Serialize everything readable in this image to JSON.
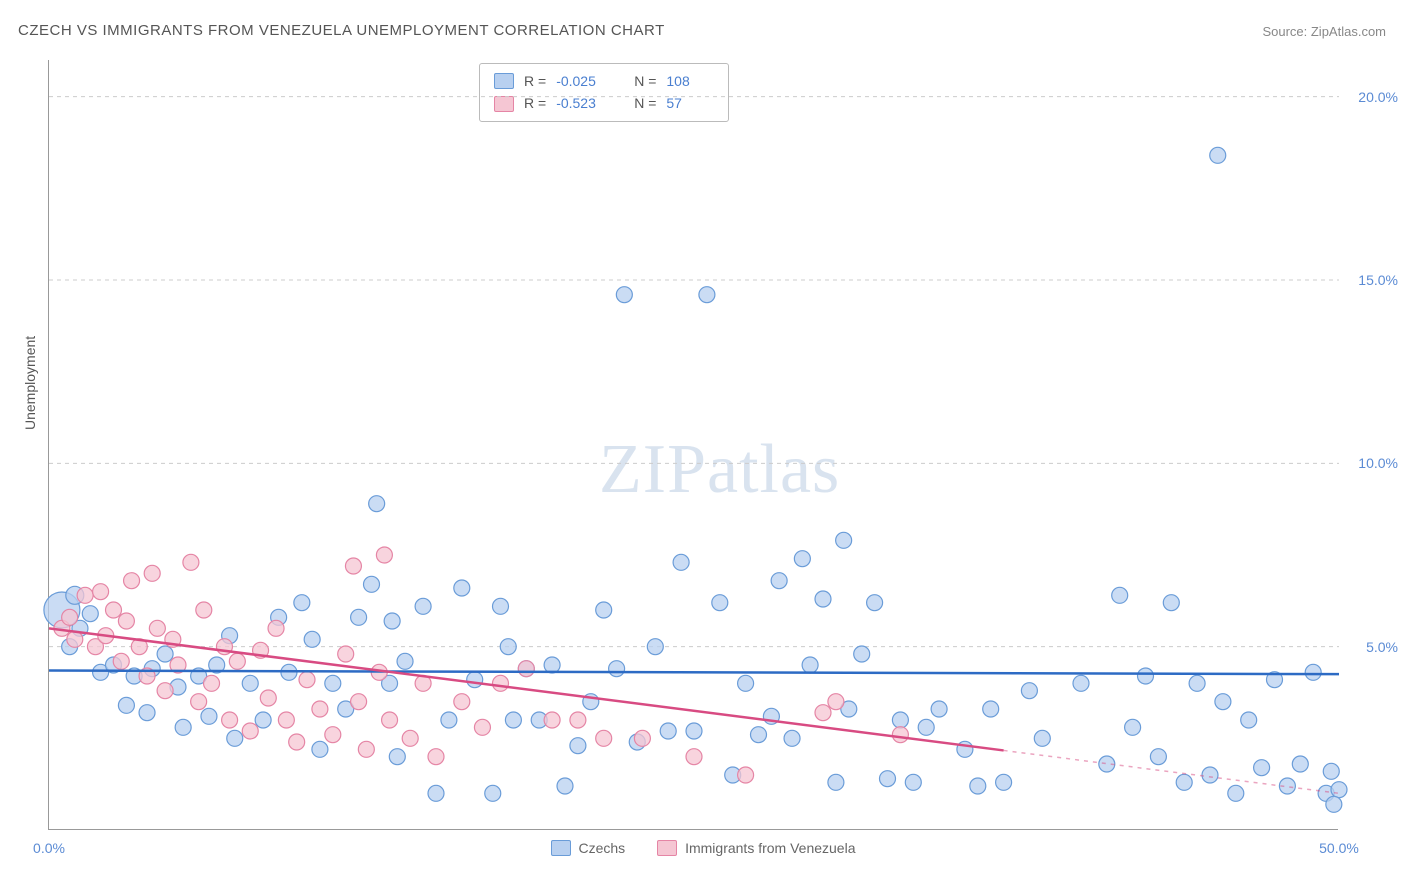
{
  "title": "CZECH VS IMMIGRANTS FROM VENEZUELA UNEMPLOYMENT CORRELATION CHART",
  "source": "Source: ZipAtlas.com",
  "watermark_zip": "ZIP",
  "watermark_atlas": "atlas",
  "y_axis_label": "Unemployment",
  "chart": {
    "type": "scatter",
    "background_color": "#ffffff",
    "grid_color": "#cccccc",
    "axis_color": "#999999",
    "xlim": [
      0,
      50
    ],
    "ylim": [
      0,
      21
    ],
    "x_ticks": [
      {
        "v": 0,
        "l": "0.0%"
      },
      {
        "v": 50,
        "l": "50.0%"
      }
    ],
    "y_ticks": [
      {
        "v": 5,
        "l": "5.0%"
      },
      {
        "v": 10,
        "l": "10.0%"
      },
      {
        "v": 15,
        "l": "15.0%"
      },
      {
        "v": 20,
        "l": "20.0%"
      }
    ],
    "grid_y": [
      0,
      5,
      10,
      15,
      20
    ],
    "tick_color": "#5b8bd4",
    "tick_fontsize": 14,
    "watermark_color": "#d9e3ef"
  },
  "series": [
    {
      "name": "Czechs",
      "marker_color_fill": "#b8d0f0",
      "marker_color_stroke": "#6a9cd8",
      "marker_radius": 8,
      "marker_opacity": 0.75,
      "R": "-0.025",
      "N": "108",
      "trend": {
        "color": "#2d6bc4",
        "width": 2.5,
        "y_at_x0": 4.35,
        "y_at_x50": 4.25,
        "x_extent": 50,
        "dash_after": 50
      },
      "points": [
        [
          0.5,
          6.0,
          18
        ],
        [
          1.0,
          6.4,
          9
        ],
        [
          1.2,
          5.5,
          8
        ],
        [
          0.8,
          5.0,
          8
        ],
        [
          1.6,
          5.9,
          8
        ],
        [
          2.0,
          4.3,
          8
        ],
        [
          2.5,
          4.5,
          8
        ],
        [
          3.0,
          3.4,
          8
        ],
        [
          3.3,
          4.2,
          8
        ],
        [
          3.8,
          3.2,
          8
        ],
        [
          4.0,
          4.4,
          8
        ],
        [
          4.5,
          4.8,
          8
        ],
        [
          5.0,
          3.9,
          8
        ],
        [
          5.2,
          2.8,
          8
        ],
        [
          5.8,
          4.2,
          8
        ],
        [
          6.2,
          3.1,
          8
        ],
        [
          6.5,
          4.5,
          8
        ],
        [
          7.0,
          5.3,
          8
        ],
        [
          7.2,
          2.5,
          8
        ],
        [
          7.8,
          4.0,
          8
        ],
        [
          8.3,
          3.0,
          8
        ],
        [
          8.9,
          5.8,
          8
        ],
        [
          9.3,
          4.3,
          8
        ],
        [
          9.8,
          6.2,
          8
        ],
        [
          10.2,
          5.2,
          8
        ],
        [
          10.5,
          2.2,
          8
        ],
        [
          11.0,
          4.0,
          8
        ],
        [
          11.5,
          3.3,
          8
        ],
        [
          12.0,
          5.8,
          8
        ],
        [
          12.5,
          6.7,
          8
        ],
        [
          12.7,
          8.9,
          8
        ],
        [
          13.2,
          4.0,
          8
        ],
        [
          13.3,
          5.7,
          8
        ],
        [
          13.5,
          2.0,
          8
        ],
        [
          13.8,
          4.6,
          8
        ],
        [
          14.5,
          6.1,
          8
        ],
        [
          15.0,
          1.0,
          8
        ],
        [
          15.5,
          3.0,
          8
        ],
        [
          16.0,
          6.6,
          8
        ],
        [
          16.5,
          4.1,
          8
        ],
        [
          17.2,
          1.0,
          8
        ],
        [
          17.5,
          6.1,
          8
        ],
        [
          17.8,
          5.0,
          8
        ],
        [
          18.0,
          3.0,
          8
        ],
        [
          18.5,
          4.4,
          8
        ],
        [
          19.0,
          3.0,
          8
        ],
        [
          19.5,
          4.5,
          8
        ],
        [
          20.0,
          1.2,
          8
        ],
        [
          20.5,
          2.3,
          8
        ],
        [
          21.0,
          3.5,
          8
        ],
        [
          21.5,
          6.0,
          8
        ],
        [
          22.0,
          4.4,
          8
        ],
        [
          22.3,
          14.6,
          8
        ],
        [
          22.8,
          2.4,
          8
        ],
        [
          23.5,
          5.0,
          8
        ],
        [
          24.0,
          2.7,
          8
        ],
        [
          24.5,
          7.3,
          8
        ],
        [
          25.0,
          2.7,
          8
        ],
        [
          25.5,
          14.6,
          8
        ],
        [
          26.0,
          6.2,
          8
        ],
        [
          26.5,
          1.5,
          8
        ],
        [
          27.0,
          4.0,
          8
        ],
        [
          27.5,
          2.6,
          8
        ],
        [
          28.0,
          3.1,
          8
        ],
        [
          28.3,
          6.8,
          8
        ],
        [
          28.8,
          2.5,
          8
        ],
        [
          29.2,
          7.4,
          8
        ],
        [
          29.5,
          4.5,
          8
        ],
        [
          30.0,
          6.3,
          8
        ],
        [
          30.5,
          1.3,
          8
        ],
        [
          30.8,
          7.9,
          8
        ],
        [
          31.0,
          3.3,
          8
        ],
        [
          31.5,
          4.8,
          8
        ],
        [
          32.0,
          6.2,
          8
        ],
        [
          32.5,
          1.4,
          8
        ],
        [
          33.0,
          3.0,
          8
        ],
        [
          33.5,
          1.3,
          8
        ],
        [
          34.0,
          2.8,
          8
        ],
        [
          34.5,
          3.3,
          8
        ],
        [
          35.5,
          2.2,
          8
        ],
        [
          36.0,
          1.2,
          8
        ],
        [
          36.5,
          3.3,
          8
        ],
        [
          37.0,
          1.3,
          8
        ],
        [
          38.0,
          3.8,
          8
        ],
        [
          38.5,
          2.5,
          8
        ],
        [
          40.0,
          4.0,
          8
        ],
        [
          41.0,
          1.8,
          8
        ],
        [
          41.5,
          6.4,
          8
        ],
        [
          42.0,
          2.8,
          8
        ],
        [
          42.5,
          4.2,
          8
        ],
        [
          43.0,
          2.0,
          8
        ],
        [
          43.5,
          6.2,
          8
        ],
        [
          44.0,
          1.3,
          8
        ],
        [
          44.5,
          4.0,
          8
        ],
        [
          45.0,
          1.5,
          8
        ],
        [
          45.3,
          18.4,
          8
        ],
        [
          45.5,
          3.5,
          8
        ],
        [
          46.0,
          1.0,
          8
        ],
        [
          46.5,
          3.0,
          8
        ],
        [
          47.0,
          1.7,
          8
        ],
        [
          47.5,
          4.1,
          8
        ],
        [
          48.0,
          1.2,
          8
        ],
        [
          48.5,
          1.8,
          8
        ],
        [
          49.0,
          4.3,
          8
        ],
        [
          49.5,
          1.0,
          8
        ],
        [
          49.7,
          1.6,
          8
        ],
        [
          50.0,
          1.1,
          8
        ],
        [
          49.8,
          0.7,
          8
        ]
      ]
    },
    {
      "name": "Immigrants from Venezuela",
      "marker_color_fill": "#f5c6d3",
      "marker_color_stroke": "#e585a5",
      "marker_radius": 8,
      "marker_opacity": 0.75,
      "R": "-0.523",
      "N": "57",
      "trend": {
        "color": "#d84b82",
        "width": 2.5,
        "y_at_x0": 5.5,
        "y_at_x50": 1.0,
        "x_extent": 37,
        "dash_after": 37
      },
      "points": [
        [
          0.5,
          5.5,
          8
        ],
        [
          0.8,
          5.8,
          8
        ],
        [
          1.0,
          5.2,
          8
        ],
        [
          1.4,
          6.4,
          8
        ],
        [
          1.8,
          5.0,
          8
        ],
        [
          2.0,
          6.5,
          8
        ],
        [
          2.2,
          5.3,
          8
        ],
        [
          2.5,
          6.0,
          8
        ],
        [
          2.8,
          4.6,
          8
        ],
        [
          3.0,
          5.7,
          8
        ],
        [
          3.2,
          6.8,
          8
        ],
        [
          3.5,
          5.0,
          8
        ],
        [
          3.8,
          4.2,
          8
        ],
        [
          4.0,
          7.0,
          8
        ],
        [
          4.2,
          5.5,
          8
        ],
        [
          4.5,
          3.8,
          8
        ],
        [
          4.8,
          5.2,
          8
        ],
        [
          5.0,
          4.5,
          8
        ],
        [
          5.5,
          7.3,
          8
        ],
        [
          5.8,
          3.5,
          8
        ],
        [
          6.0,
          6.0,
          8
        ],
        [
          6.3,
          4.0,
          8
        ],
        [
          6.8,
          5.0,
          8
        ],
        [
          7.0,
          3.0,
          8
        ],
        [
          7.3,
          4.6,
          8
        ],
        [
          7.8,
          2.7,
          8
        ],
        [
          8.2,
          4.9,
          8
        ],
        [
          8.5,
          3.6,
          8
        ],
        [
          8.8,
          5.5,
          8
        ],
        [
          9.2,
          3.0,
          8
        ],
        [
          9.6,
          2.4,
          8
        ],
        [
          10.0,
          4.1,
          8
        ],
        [
          10.5,
          3.3,
          8
        ],
        [
          11.0,
          2.6,
          8
        ],
        [
          11.5,
          4.8,
          8
        ],
        [
          11.8,
          7.2,
          8
        ],
        [
          12.0,
          3.5,
          8
        ],
        [
          12.3,
          2.2,
          8
        ],
        [
          12.8,
          4.3,
          8
        ],
        [
          13.0,
          7.5,
          8
        ],
        [
          13.2,
          3.0,
          8
        ],
        [
          14.0,
          2.5,
          8
        ],
        [
          14.5,
          4.0,
          8
        ],
        [
          15.0,
          2.0,
          8
        ],
        [
          16.0,
          3.5,
          8
        ],
        [
          16.8,
          2.8,
          8
        ],
        [
          17.5,
          4.0,
          8
        ],
        [
          18.5,
          4.4,
          8
        ],
        [
          19.5,
          3.0,
          8
        ],
        [
          20.5,
          3.0,
          8
        ],
        [
          21.5,
          2.5,
          8
        ],
        [
          23.0,
          2.5,
          8
        ],
        [
          25.0,
          2.0,
          8
        ],
        [
          27.0,
          1.5,
          8
        ],
        [
          30.0,
          3.2,
          8
        ],
        [
          30.5,
          3.5,
          8
        ],
        [
          33.0,
          2.6,
          8
        ]
      ]
    }
  ],
  "top_legend": {
    "R_label": "R =",
    "N_label": "N ="
  },
  "bottom_legend": {
    "items": [
      "Czechs",
      "Immigrants from Venezuela"
    ]
  }
}
